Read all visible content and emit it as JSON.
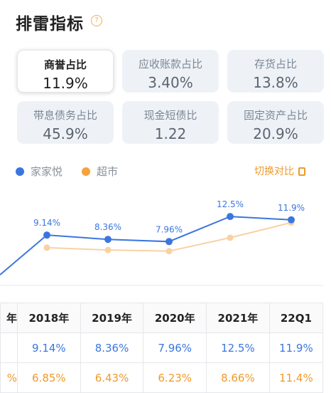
{
  "header": {
    "title": "排雷指标",
    "help_icon": "question-circle-icon"
  },
  "cards": [
    {
      "label": "商誉占比",
      "value": "11.9%",
      "active": true
    },
    {
      "label": "应收账款占比",
      "value": "3.40%"
    },
    {
      "label": "存货占比",
      "value": "13.8%"
    },
    {
      "label": "带息债务占比",
      "value": "45.9%"
    },
    {
      "label": "现金短债比",
      "value": "1.22"
    },
    {
      "label": "固定资产占比",
      "value": "20.9%"
    }
  ],
  "legend": {
    "items": [
      {
        "name": "家家悦",
        "color": "#3b76e0"
      },
      {
        "name": "超市",
        "color": "#f5a33a"
      }
    ],
    "switch_label": "切换对比",
    "switch_icon": "toggle-icon"
  },
  "chart_data": {
    "type": "line",
    "categories": [
      "2018年",
      "2019年",
      "2020年",
      "2021年",
      "22Q1"
    ],
    "series": [
      {
        "name": "家家悦",
        "values": [
          9.14,
          8.36,
          7.96,
          12.5,
          11.9
        ],
        "labels": [
          "9.14%",
          "8.36%",
          "7.96%",
          "12.5%",
          "11.9%"
        ],
        "color": "#3b76e0"
      },
      {
        "name": "超市",
        "values": [
          6.85,
          6.43,
          6.23,
          8.66,
          11.4
        ],
        "color": "#f5a33a"
      }
    ],
    "partial_left_point": {
      "家家悦": 0.0
    }
  },
  "table": {
    "first_col_fragment": [
      "年",
      "",
      "%"
    ],
    "headers": [
      "2018年",
      "2019年",
      "2020年",
      "2021年",
      "22Q1"
    ],
    "rows": [
      [
        "9.14%",
        "8.36%",
        "7.96%",
        "12.5%",
        "11.9%"
      ],
      [
        "6.85%",
        "6.43%",
        "6.23%",
        "8.66%",
        "11.4%"
      ]
    ]
  }
}
